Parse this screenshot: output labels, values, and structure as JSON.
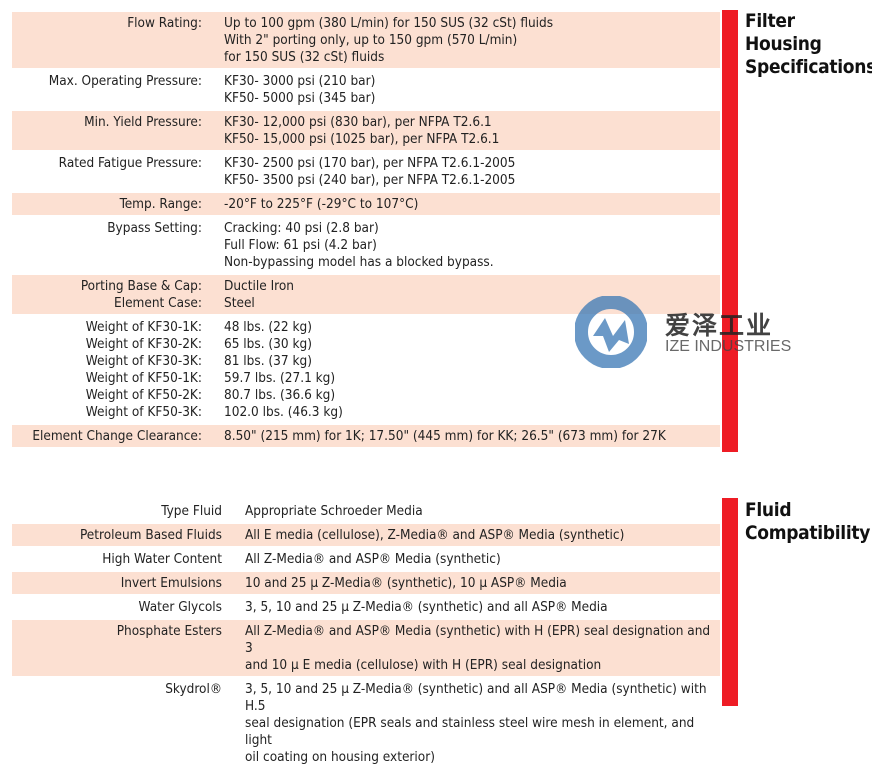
{
  "housing": {
    "title_lines": [
      "Filter",
      "Housing",
      "Specifications"
    ],
    "rows": [
      {
        "label": [
          "Flow Rating:"
        ],
        "value": [
          "Up to 100 gpm (380 L/min) for 150 SUS (32 cSt) fluids",
          "With 2\" porting only, up to 150 gpm (570 L/min)",
          "for 150 SUS (32 cSt) fluids"
        ],
        "shaded": true
      },
      {
        "label": [
          "Max. Operating Pressure:"
        ],
        "value": [
          "KF30- 3000 psi (210 bar)",
          "KF50- 5000 psi (345 bar)"
        ],
        "shaded": false
      },
      {
        "label": [
          "Min. Yield Pressure:"
        ],
        "value": [
          "KF30- 12,000 psi (830 bar), per NFPA T2.6.1",
          "KF50- 15,000 psi (1025 bar), per NFPA T2.6.1"
        ],
        "shaded": true
      },
      {
        "label": [
          "Rated Fatigue Pressure:"
        ],
        "value": [
          "KF30- 2500 psi (170 bar), per NFPA T2.6.1-2005",
          "KF50- 3500 psi (240 bar), per NFPA T2.6.1-2005"
        ],
        "shaded": false
      },
      {
        "label": [
          "Temp. Range:"
        ],
        "value": [
          "-20°F to 225°F (-29°C to 107°C)"
        ],
        "shaded": true
      },
      {
        "label": [
          "Bypass Setting:"
        ],
        "value": [
          "Cracking:  40 psi (2.8 bar)",
          "Full Flow:  61 psi (4.2 bar)",
          "Non-bypassing model has a blocked bypass."
        ],
        "shaded": false
      },
      {
        "label": [
          "Porting Base & Cap:",
          "Element Case:"
        ],
        "value": [
          "Ductile Iron",
          "Steel"
        ],
        "shaded": true
      },
      {
        "label": [
          "Weight of KF30-1K:",
          "Weight of KF30-2K:",
          "Weight of KF30-3K:",
          "Weight of KF50-1K:",
          "Weight of KF50-2K:",
          "Weight of KF50-3K:"
        ],
        "value": [
          "48 lbs. (22 kg)",
          "65 lbs. (30 kg)",
          "81 lbs. (37 kg)",
          "59.7 lbs. (27.1 kg)",
          "80.7 lbs. (36.6 kg)",
          "102.0 lbs. (46.3 kg)"
        ],
        "shaded": false
      },
      {
        "label": [
          "Element Change Clearance:"
        ],
        "value": [
          "8.50\" (215 mm) for 1K; 17.50\" (445 mm) for KK; 26.5\" (673 mm) for 27K"
        ],
        "shaded": true
      }
    ]
  },
  "fluid": {
    "title_lines": [
      "Fluid",
      "Compatibility"
    ],
    "rows": [
      {
        "label": [
          "Type Fluid"
        ],
        "value": [
          "Appropriate Schroeder Media"
        ],
        "shaded": false
      },
      {
        "label": [
          "Petroleum Based Fluids"
        ],
        "value": [
          "All E media (cellulose), Z-Media® and ASP® Media (synthetic)"
        ],
        "shaded": true
      },
      {
        "label": [
          "High Water Content"
        ],
        "value": [
          "All Z-Media® and ASP® Media (synthetic)"
        ],
        "shaded": false
      },
      {
        "label": [
          "Invert Emulsions"
        ],
        "value": [
          "10 and 25 µ Z-Media® (synthetic), 10 µ ASP® Media"
        ],
        "shaded": true
      },
      {
        "label": [
          "Water Glycols"
        ],
        "value": [
          "3, 5, 10 and 25 µ Z-Media® (synthetic) and all ASP® Media"
        ],
        "shaded": false
      },
      {
        "label": [
          "Phosphate Esters"
        ],
        "value": [
          "All Z-Media® and ASP® Media (synthetic) with H (EPR) seal designation and 3",
          "and 10 µ E media (cellulose) with H (EPR) seal designation"
        ],
        "shaded": true
      },
      {
        "label": [
          "Skydrol®"
        ],
        "value": [
          "3, 5, 10 and 25 µ Z-Media® (synthetic) and all ASP® Media (synthetic) with H.5",
          "seal designation (EPR seals and stainless steel wire mesh in element, and light",
          "oil coating on housing exterior)"
        ],
        "shaded": false
      }
    ]
  },
  "watermark": {
    "cn": "爱泽工业",
    "en": "IZE INDUSTRIES"
  },
  "colors": {
    "accent_bar": "#ee1c25",
    "row_shade": "#fce0d2"
  }
}
